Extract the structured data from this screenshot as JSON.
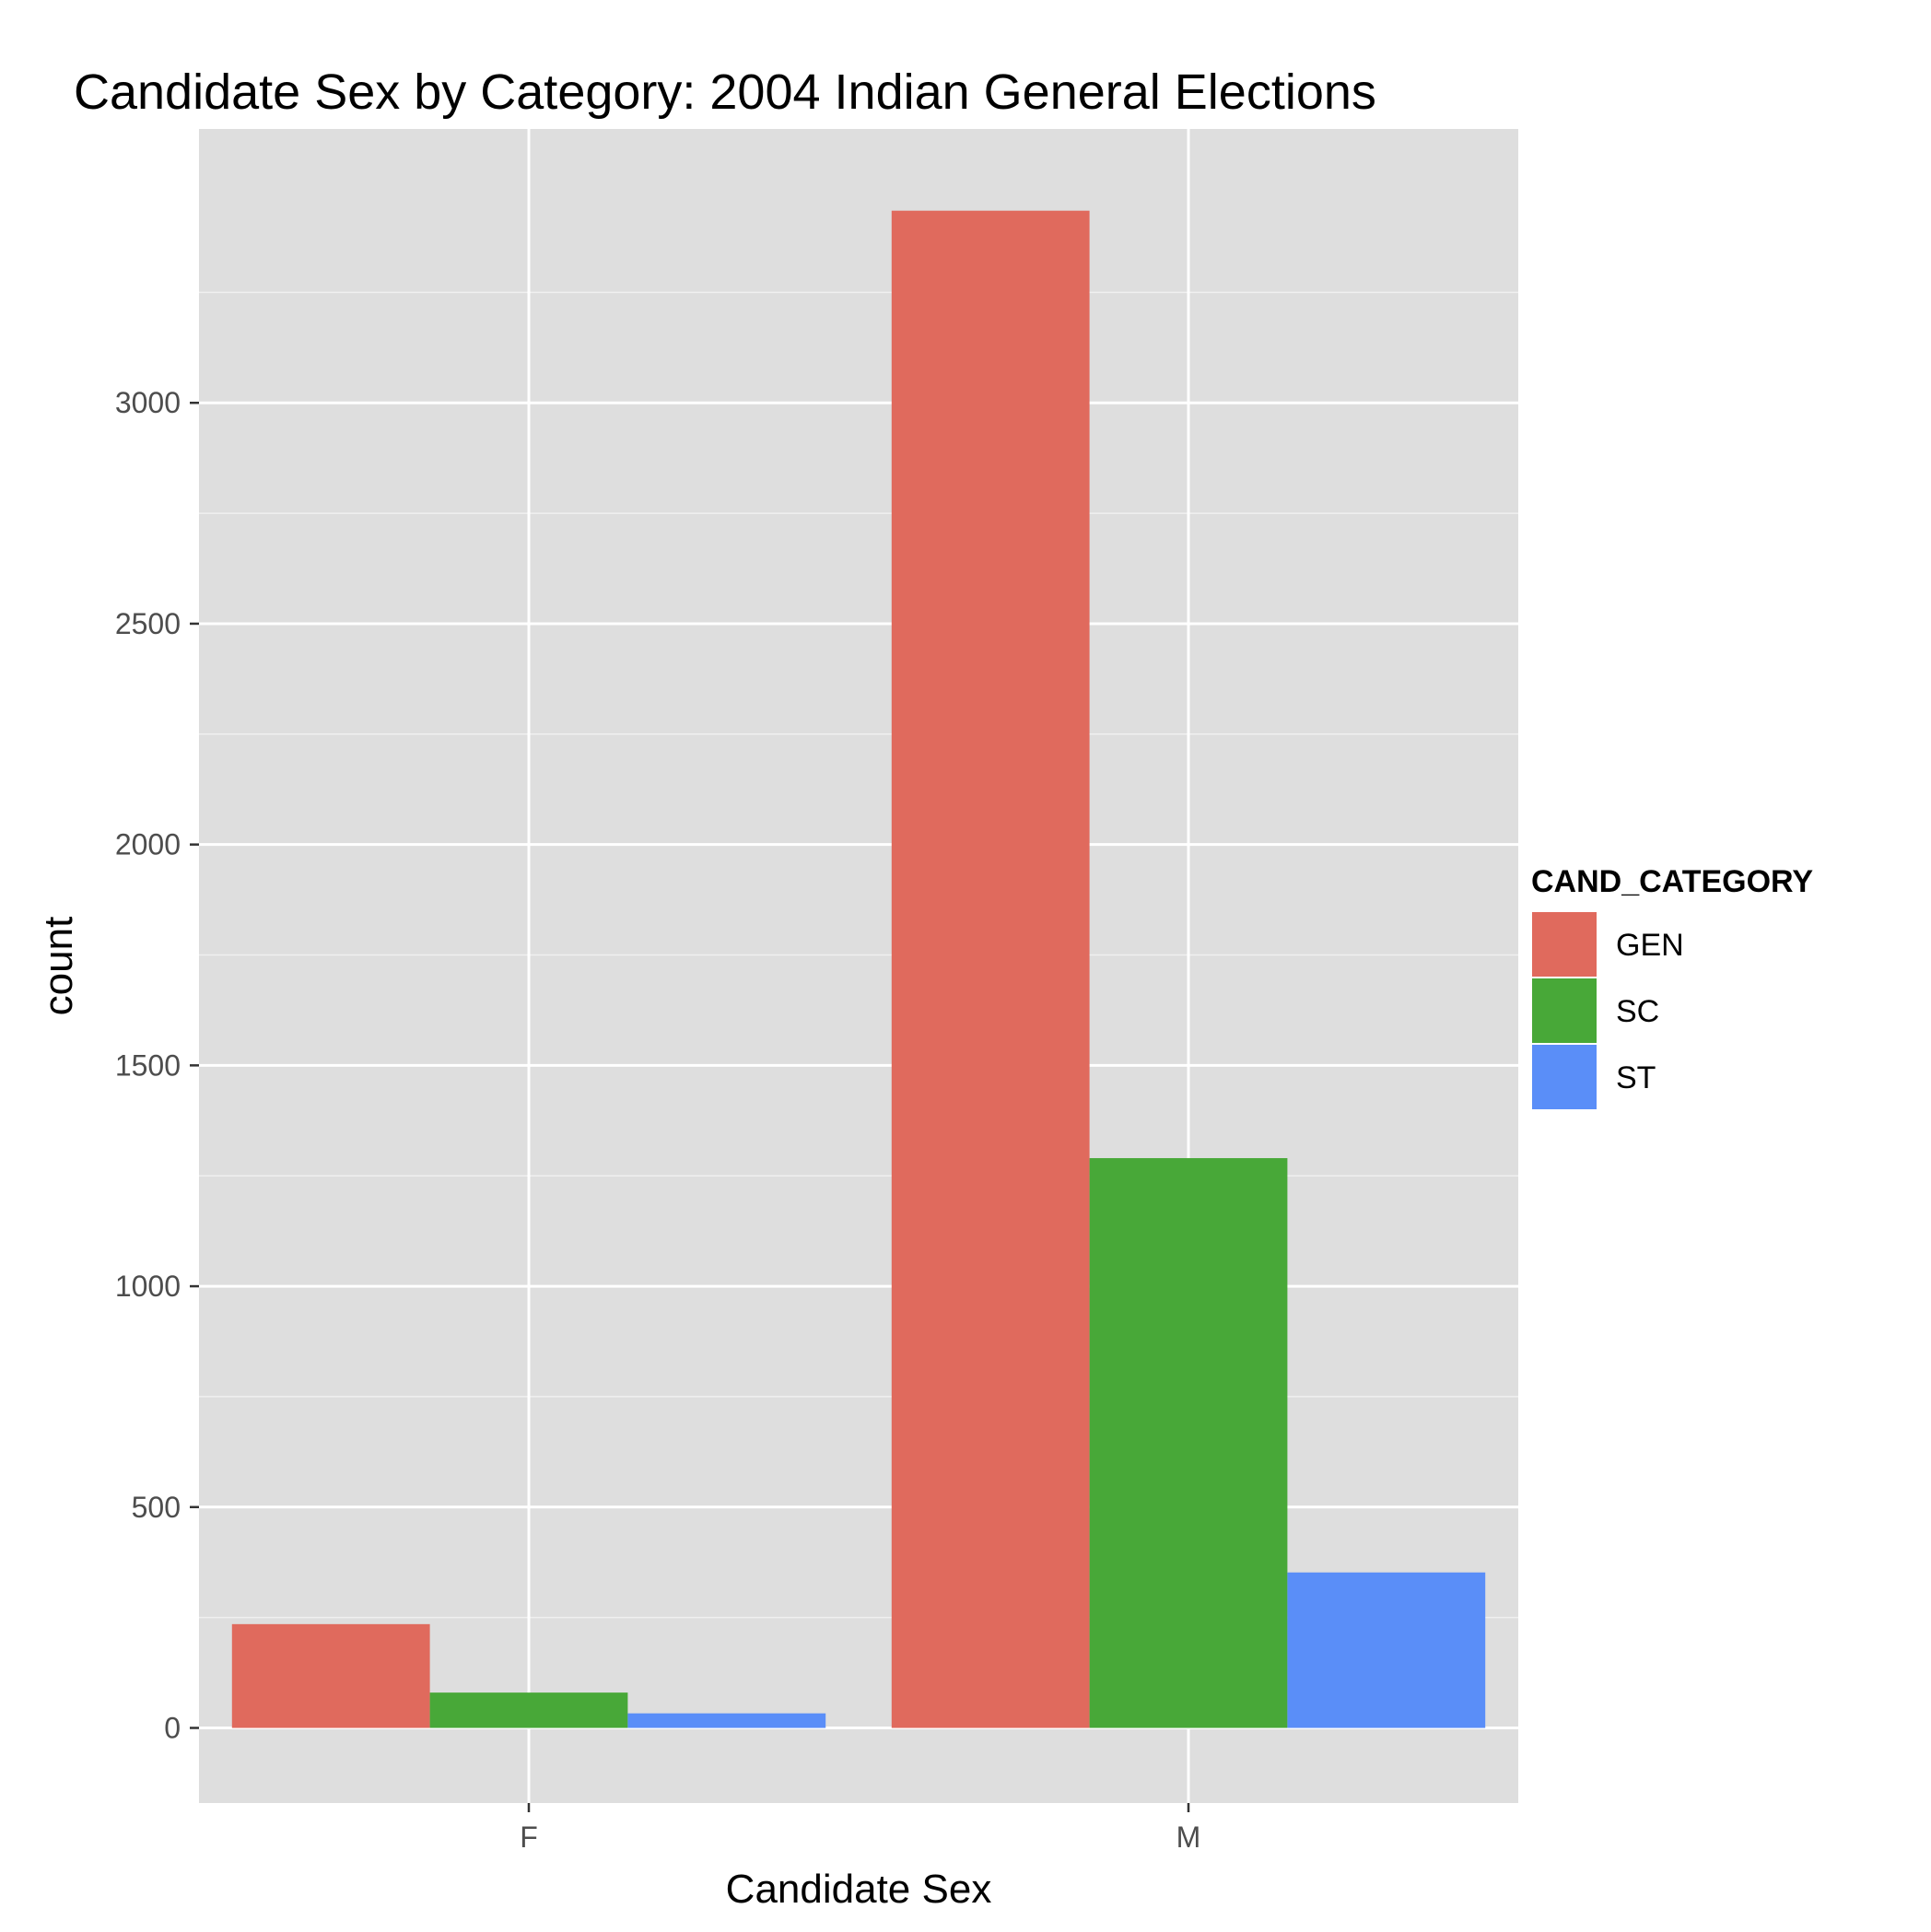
{
  "chart_data": {
    "type": "bar",
    "title": "Candidate Sex by Category: 2004 Indian General Elections",
    "xlabel": "Candidate Sex",
    "ylabel": "count",
    "categories": [
      "F",
      "M"
    ],
    "series": [
      {
        "name": "GEN",
        "color": "#e06a5d",
        "values": [
          235,
          3435
        ]
      },
      {
        "name": "SC",
        "color": "#48a838",
        "values": [
          80,
          1290
        ]
      },
      {
        "name": "ST",
        "color": "#5a8ef8",
        "values": [
          33,
          352
        ]
      }
    ],
    "ylim": [
      -170,
      3620
    ],
    "yticks": [
      0,
      500,
      1000,
      1500,
      2000,
      2500,
      3000
    ],
    "ytick_labels": [
      "0",
      "500",
      "1000",
      "1500",
      "2000",
      "2500",
      "3000"
    ],
    "legend": {
      "title": "CAND_CATEGORY",
      "position": "right"
    },
    "grid": true,
    "panel_color": "#dedede",
    "grid_color": "#ffffff"
  }
}
